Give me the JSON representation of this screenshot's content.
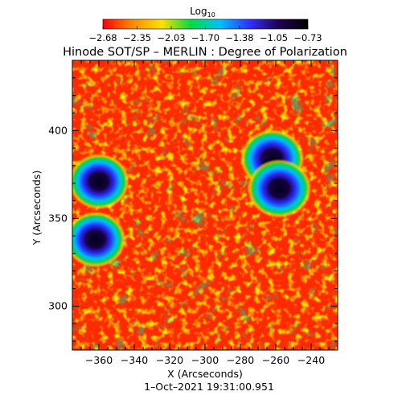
{
  "colorbar": {
    "label": "Log",
    "label_subscript": "10",
    "ticks": [
      "−2.68",
      "−2.35",
      "−2.03",
      "−1.70",
      "−1.38",
      "−1.05",
      "−0.73"
    ],
    "range": [
      -2.68,
      -0.73
    ],
    "colormap": [
      "#ff0000",
      "#ff8a00",
      "#ffe000",
      "#00dd40",
      "#00c0ff",
      "#3030ff",
      "#200050",
      "#000000"
    ]
  },
  "title": "Hinode SOT/SP – MERLIN : Degree of Polarization",
  "x_axis": {
    "label": "X (Arcseconds)",
    "range": [
      -375,
      -225
    ],
    "ticks": [
      -360,
      -340,
      -320,
      -300,
      -280,
      -260,
      -240
    ],
    "tick_labels": [
      "−360",
      "−340",
      "−320",
      "−300",
      "−280",
      "−260",
      "−240"
    ]
  },
  "y_axis": {
    "label": "Y (Arcseconds)",
    "range": [
      275,
      440
    ],
    "ticks": [
      300,
      350,
      400
    ],
    "tick_labels": [
      "300",
      "350",
      "400"
    ]
  },
  "timestamp": "1–Oct–2021 19:31:00.951",
  "map": {
    "background_color": "#ff2a00",
    "sunspots": [
      {
        "x": -360,
        "y": 371,
        "value": -0.8
      },
      {
        "x": -362,
        "y": 338,
        "value": -0.8
      },
      {
        "x": -262,
        "y": 384,
        "value": -0.75
      },
      {
        "x": -258,
        "y": 367,
        "value": -0.75
      }
    ]
  }
}
